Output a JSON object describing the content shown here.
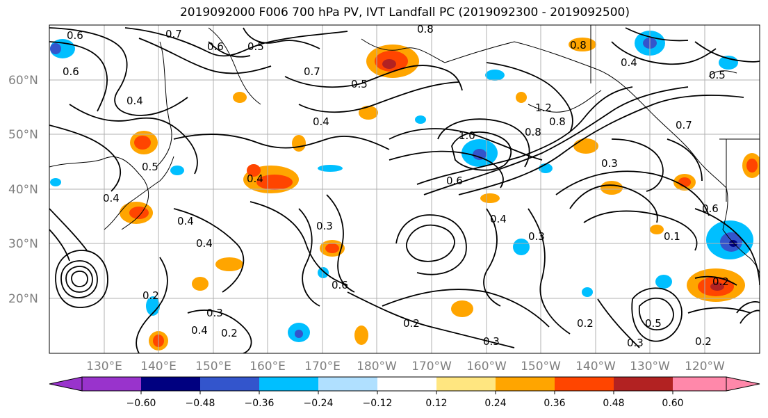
{
  "title": "2019092000 F006 700 hPa PV, IVT Landfall PC (2019092300 - 2019092500)",
  "lat_labels": [
    "60°N",
    "50°N",
    "40°N",
    "30°N",
    "20°N"
  ],
  "lon_labels": [
    "130°E",
    "140°E",
    "150°E",
    "160°E",
    "170°E",
    "180°W",
    "170°W",
    "160°W",
    "150°W",
    "140°W",
    "130°W",
    "120°W"
  ],
  "colorbar": {
    "ticks": [
      "−0.60",
      "−0.48",
      "−0.36",
      "−0.24",
      "−0.12",
      "0.12",
      "0.24",
      "0.36",
      "0.48",
      "0.60"
    ],
    "colors": [
      "#9933cc",
      "#000080",
      "#3355cc",
      "#00bfff",
      "#b0e0ff",
      "#ffffff",
      "#ffe680",
      "#ffa500",
      "#ff4500",
      "#b22222",
      "#ff88aa"
    ]
  },
  "contour_labels": [
    "0.6",
    "0.7",
    "0.6",
    "0.5",
    "0.8",
    "0.7",
    "0.5",
    "0.4",
    "0.6",
    "0.8",
    "0.4",
    "0.5",
    "0.4",
    "0.4",
    "0.4",
    "0.5",
    "0.4",
    "0.3",
    "0.4",
    "0.6",
    "0.8",
    "1.0",
    "1.2",
    "0.8",
    "0.6",
    "0.3",
    "0.7",
    "0.1",
    "0.6",
    "0.4",
    "0.2",
    "0.4",
    "0.3",
    "0.2",
    "0.2",
    "0.3",
    "0.3",
    "0.5",
    "0.3",
    "0.2",
    "0.2",
    "0.2"
  ],
  "map": {
    "coast_color": "#000000",
    "grid_color": "#b0b0b0",
    "contour_color": "#000000"
  }
}
